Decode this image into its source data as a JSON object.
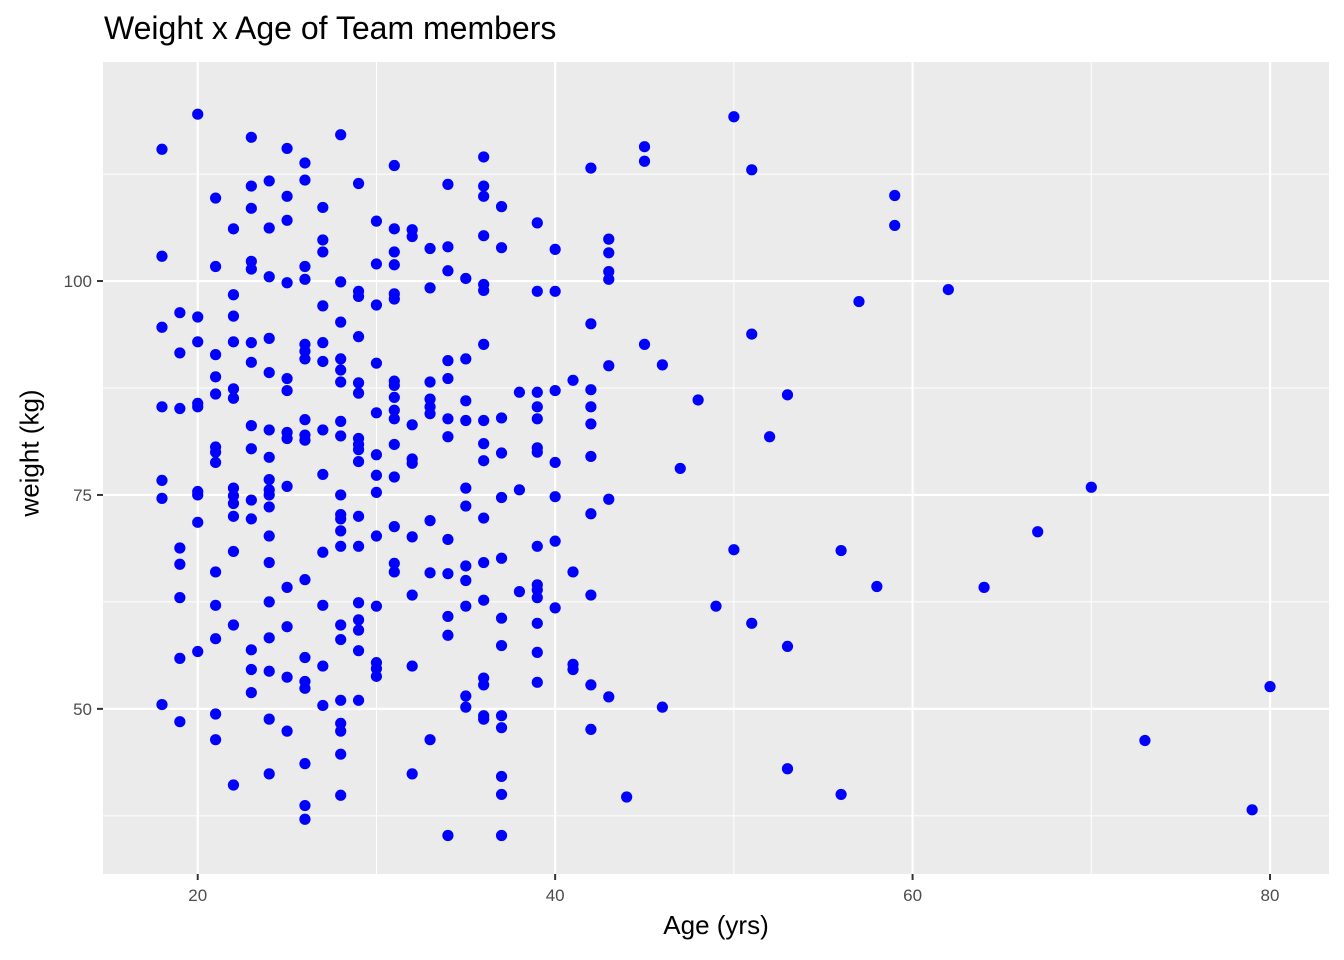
{
  "chart_data": {
    "type": "scatter",
    "title": "Weight x Age of Team members",
    "xlabel": "Age (yrs)",
    "ylabel": "weight (kg)",
    "xlim": [
      14.7,
      83.3
    ],
    "ylim": [
      30.7,
      125.6
    ],
    "x_ticks": [
      20,
      40,
      60,
      80
    ],
    "y_ticks": [
      50,
      75,
      100
    ],
    "grid": true,
    "legend": "none",
    "point_color": "#0000ff",
    "panel_background": "#ebebeb",
    "grid_color": "#ffffff",
    "points": [
      [
        18,
        115.4
      ],
      [
        18,
        102.9
      ],
      [
        18,
        94.6
      ],
      [
        18,
        85.3
      ],
      [
        18,
        76.7
      ],
      [
        18,
        74.6
      ],
      [
        18,
        50.5
      ],
      [
        19,
        96.3
      ],
      [
        19,
        91.6
      ],
      [
        19,
        85.1
      ],
      [
        19,
        68.8
      ],
      [
        19,
        66.9
      ],
      [
        19,
        63.0
      ],
      [
        19,
        55.9
      ],
      [
        19,
        48.5
      ],
      [
        20,
        119.5
      ],
      [
        20,
        95.8
      ],
      [
        20,
        92.9
      ],
      [
        20,
        85.7
      ],
      [
        20,
        85.3
      ],
      [
        20,
        75.4
      ],
      [
        20,
        75.0
      ],
      [
        20,
        71.8
      ],
      [
        20,
        56.7
      ],
      [
        21,
        109.7
      ],
      [
        21,
        101.7
      ],
      [
        21,
        91.4
      ],
      [
        21,
        88.8
      ],
      [
        21,
        86.8
      ],
      [
        21,
        80.6
      ],
      [
        21,
        80.0
      ],
      [
        21,
        78.8
      ],
      [
        21,
        66.0
      ],
      [
        21,
        62.1
      ],
      [
        21,
        58.2
      ],
      [
        21,
        49.4
      ],
      [
        21,
        46.4
      ],
      [
        22,
        106.1
      ],
      [
        22,
        98.4
      ],
      [
        22,
        95.9
      ],
      [
        22,
        92.9
      ],
      [
        22,
        87.4
      ],
      [
        22,
        86.3
      ],
      [
        22,
        75.8
      ],
      [
        22,
        74.9
      ],
      [
        22,
        74.0
      ],
      [
        22,
        72.5
      ],
      [
        22,
        68.4
      ],
      [
        22,
        59.8
      ],
      [
        22,
        41.1
      ],
      [
        23,
        116.8
      ],
      [
        23,
        111.1
      ],
      [
        23,
        108.5
      ],
      [
        23,
        102.3
      ],
      [
        23,
        101.4
      ],
      [
        23,
        92.8
      ],
      [
        23,
        90.5
      ],
      [
        23,
        83.1
      ],
      [
        23,
        80.4
      ],
      [
        23,
        74.4
      ],
      [
        23,
        72.2
      ],
      [
        23,
        56.9
      ],
      [
        23,
        54.6
      ],
      [
        23,
        51.9
      ],
      [
        24,
        111.7
      ],
      [
        24,
        106.2
      ],
      [
        24,
        100.5
      ],
      [
        24,
        93.3
      ],
      [
        24,
        89.3
      ],
      [
        24,
        82.6
      ],
      [
        24,
        79.4
      ],
      [
        24,
        76.8
      ],
      [
        24,
        75.6
      ],
      [
        24,
        75.0
      ],
      [
        24,
        73.6
      ],
      [
        24,
        70.2
      ],
      [
        24,
        67.1
      ],
      [
        24,
        62.5
      ],
      [
        24,
        58.3
      ],
      [
        24,
        54.4
      ],
      [
        24,
        48.8
      ],
      [
        24,
        42.4
      ],
      [
        25,
        115.5
      ],
      [
        25,
        109.9
      ],
      [
        25,
        107.1
      ],
      [
        25,
        99.8
      ],
      [
        25,
        88.6
      ],
      [
        25,
        87.2
      ],
      [
        25,
        82.3
      ],
      [
        25,
        81.6
      ],
      [
        25,
        76.0
      ],
      [
        25,
        64.2
      ],
      [
        25,
        59.6
      ],
      [
        25,
        53.7
      ],
      [
        25,
        47.4
      ],
      [
        26,
        113.8
      ],
      [
        26,
        111.8
      ],
      [
        26,
        101.7
      ],
      [
        26,
        100.2
      ],
      [
        26,
        92.6
      ],
      [
        26,
        91.8
      ],
      [
        26,
        90.9
      ],
      [
        26,
        83.8
      ],
      [
        26,
        82.0
      ],
      [
        26,
        81.4
      ],
      [
        26,
        65.1
      ],
      [
        26,
        56.0
      ],
      [
        26,
        53.2
      ],
      [
        26,
        52.4
      ],
      [
        26,
        43.6
      ],
      [
        26,
        38.7
      ],
      [
        26,
        37.1
      ],
      [
        27,
        108.6
      ],
      [
        27,
        104.8
      ],
      [
        27,
        103.4
      ],
      [
        27,
        97.1
      ],
      [
        27,
        92.8
      ],
      [
        27,
        90.6
      ],
      [
        27,
        82.6
      ],
      [
        27,
        77.4
      ],
      [
        27,
        68.3
      ],
      [
        27,
        62.1
      ],
      [
        27,
        55.0
      ],
      [
        27,
        50.4
      ],
      [
        28,
        117.1
      ],
      [
        28,
        99.9
      ],
      [
        28,
        95.2
      ],
      [
        28,
        90.9
      ],
      [
        28,
        89.6
      ],
      [
        28,
        88.2
      ],
      [
        28,
        83.6
      ],
      [
        28,
        81.9
      ],
      [
        28,
        75.0
      ],
      [
        28,
        72.7
      ],
      [
        28,
        72.2
      ],
      [
        28,
        70.8
      ],
      [
        28,
        69.0
      ],
      [
        28,
        59.8
      ],
      [
        28,
        58.1
      ],
      [
        28,
        51.0
      ],
      [
        28,
        48.3
      ],
      [
        28,
        47.4
      ],
      [
        28,
        44.7
      ],
      [
        28,
        39.9
      ],
      [
        29,
        111.4
      ],
      [
        29,
        98.8
      ],
      [
        29,
        98.2
      ],
      [
        29,
        93.5
      ],
      [
        29,
        88.1
      ],
      [
        29,
        86.9
      ],
      [
        29,
        81.6
      ],
      [
        29,
        80.9
      ],
      [
        29,
        80.3
      ],
      [
        29,
        78.9
      ],
      [
        29,
        72.5
      ],
      [
        29,
        69.0
      ],
      [
        29,
        62.4
      ],
      [
        29,
        60.4
      ],
      [
        29,
        59.2
      ],
      [
        29,
        56.8
      ],
      [
        29,
        51.0
      ],
      [
        30,
        107.0
      ],
      [
        30,
        102.0
      ],
      [
        30,
        97.2
      ],
      [
        30,
        90.4
      ],
      [
        30,
        84.6
      ],
      [
        30,
        79.7
      ],
      [
        30,
        77.3
      ],
      [
        30,
        75.3
      ],
      [
        30,
        70.2
      ],
      [
        30,
        62.0
      ],
      [
        30,
        55.4
      ],
      [
        30,
        54.7
      ],
      [
        30,
        53.8
      ],
      [
        31,
        113.5
      ],
      [
        31,
        106.1
      ],
      [
        31,
        103.4
      ],
      [
        31,
        101.9
      ],
      [
        31,
        98.5
      ],
      [
        31,
        97.9
      ],
      [
        31,
        88.3
      ],
      [
        31,
        87.8
      ],
      [
        31,
        86.4
      ],
      [
        31,
        84.9
      ],
      [
        31,
        83.9
      ],
      [
        31,
        80.9
      ],
      [
        31,
        77.1
      ],
      [
        31,
        71.3
      ],
      [
        31,
        67.0
      ],
      [
        31,
        66.0
      ],
      [
        32,
        106.0
      ],
      [
        32,
        105.2
      ],
      [
        32,
        83.2
      ],
      [
        32,
        79.2
      ],
      [
        32,
        78.7
      ],
      [
        32,
        70.1
      ],
      [
        32,
        63.3
      ],
      [
        32,
        55.0
      ],
      [
        32,
        42.4
      ],
      [
        33,
        103.8
      ],
      [
        33,
        99.2
      ],
      [
        33,
        88.2
      ],
      [
        33,
        86.2
      ],
      [
        33,
        85.3
      ],
      [
        33,
        84.5
      ],
      [
        33,
        72.0
      ],
      [
        33,
        65.9
      ],
      [
        33,
        46.4
      ],
      [
        34,
        111.3
      ],
      [
        34,
        104.0
      ],
      [
        34,
        101.2
      ],
      [
        34,
        90.7
      ],
      [
        34,
        88.6
      ],
      [
        34,
        83.9
      ],
      [
        34,
        81.8
      ],
      [
        34,
        69.8
      ],
      [
        34,
        65.8
      ],
      [
        34,
        60.8
      ],
      [
        34,
        58.6
      ],
      [
        34,
        35.2
      ],
      [
        35,
        100.3
      ],
      [
        35,
        90.9
      ],
      [
        35,
        86.0
      ],
      [
        35,
        83.7
      ],
      [
        35,
        75.8
      ],
      [
        35,
        73.7
      ],
      [
        35,
        66.7
      ],
      [
        35,
        65.0
      ],
      [
        35,
        62.0
      ],
      [
        35,
        51.5
      ],
      [
        35,
        50.2
      ],
      [
        36,
        114.5
      ],
      [
        36,
        111.1
      ],
      [
        36,
        109.9
      ],
      [
        36,
        105.3
      ],
      [
        36,
        99.6
      ],
      [
        36,
        98.9
      ],
      [
        36,
        92.6
      ],
      [
        36,
        83.7
      ],
      [
        36,
        81.0
      ],
      [
        36,
        79.0
      ],
      [
        36,
        72.3
      ],
      [
        36,
        67.1
      ],
      [
        36,
        62.7
      ],
      [
        36,
        53.6
      ],
      [
        36,
        52.8
      ],
      [
        36,
        49.2
      ],
      [
        36,
        48.8
      ],
      [
        37,
        108.7
      ],
      [
        37,
        103.9
      ],
      [
        37,
        84.0
      ],
      [
        37,
        79.9
      ],
      [
        37,
        74.7
      ],
      [
        37,
        67.6
      ],
      [
        37,
        60.6
      ],
      [
        37,
        57.4
      ],
      [
        37,
        49.2
      ],
      [
        37,
        47.8
      ],
      [
        37,
        42.1
      ],
      [
        37,
        40.0
      ],
      [
        37,
        35.2
      ],
      [
        38,
        87.0
      ],
      [
        38,
        75.6
      ],
      [
        38,
        63.7
      ],
      [
        39,
        106.8
      ],
      [
        39,
        98.8
      ],
      [
        39,
        87.0
      ],
      [
        39,
        85.3
      ],
      [
        39,
        83.9
      ],
      [
        39,
        80.5
      ],
      [
        39,
        80.0
      ],
      [
        39,
        69.0
      ],
      [
        39,
        64.5
      ],
      [
        39,
        63.9
      ],
      [
        39,
        63.0
      ],
      [
        39,
        60.0
      ],
      [
        39,
        56.6
      ],
      [
        39,
        53.1
      ],
      [
        40,
        103.7
      ],
      [
        40,
        98.8
      ],
      [
        40,
        87.2
      ],
      [
        40,
        78.8
      ],
      [
        40,
        74.8
      ],
      [
        40,
        69.6
      ],
      [
        40,
        61.8
      ],
      [
        41,
        88.4
      ],
      [
        41,
        66.0
      ],
      [
        41,
        55.2
      ],
      [
        41,
        54.6
      ],
      [
        42,
        113.2
      ],
      [
        42,
        95.0
      ],
      [
        42,
        87.3
      ],
      [
        42,
        85.3
      ],
      [
        42,
        83.3
      ],
      [
        42,
        79.5
      ],
      [
        42,
        72.8
      ],
      [
        42,
        63.3
      ],
      [
        42,
        52.8
      ],
      [
        42,
        47.6
      ],
      [
        43,
        104.9
      ],
      [
        43,
        103.3
      ],
      [
        43,
        101.1
      ],
      [
        43,
        100.2
      ],
      [
        43,
        90.1
      ],
      [
        43,
        74.5
      ],
      [
        43,
        51.4
      ],
      [
        44,
        39.7
      ],
      [
        45,
        115.7
      ],
      [
        45,
        114.0
      ],
      [
        45,
        92.6
      ],
      [
        46,
        90.2
      ],
      [
        46,
        50.2
      ],
      [
        47,
        78.1
      ],
      [
        48,
        86.1
      ],
      [
        49,
        62.0
      ],
      [
        50,
        119.2
      ],
      [
        50,
        68.6
      ],
      [
        51,
        113.0
      ],
      [
        51,
        93.8
      ],
      [
        51,
        60.0
      ],
      [
        52,
        81.8
      ],
      [
        53,
        86.7
      ],
      [
        53,
        57.3
      ],
      [
        53,
        43.0
      ],
      [
        56,
        68.5
      ],
      [
        56,
        40.0
      ],
      [
        57,
        97.6
      ],
      [
        58,
        64.3
      ],
      [
        59,
        110.0
      ],
      [
        59,
        106.5
      ],
      [
        62,
        99.0
      ],
      [
        64,
        64.2
      ],
      [
        67,
        70.7
      ],
      [
        70,
        75.9
      ],
      [
        73,
        46.3
      ],
      [
        79,
        38.2
      ],
      [
        80,
        52.6
      ]
    ]
  }
}
